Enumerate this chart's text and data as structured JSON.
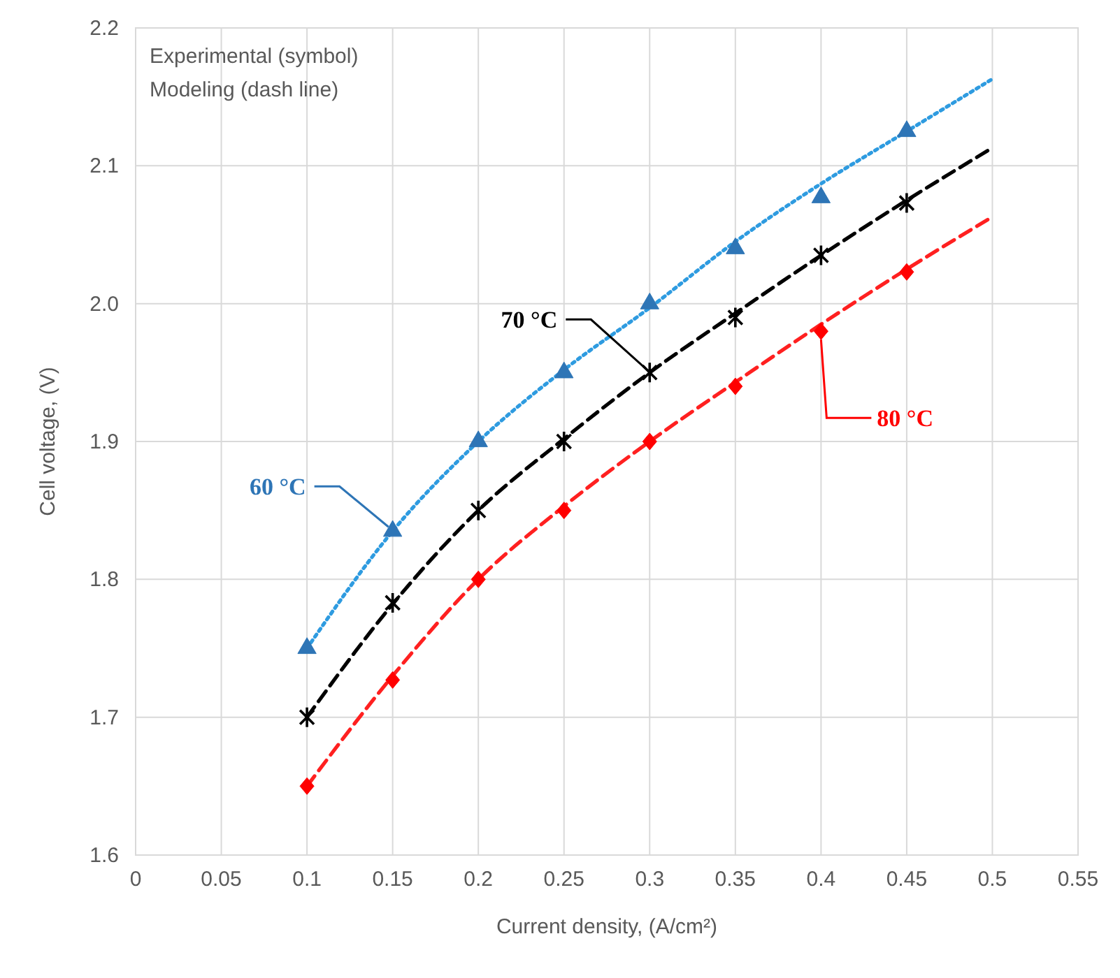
{
  "chart_data": {
    "type": "line",
    "xlabel": "Current density, (A/cm²)",
    "ylabel": "Cell voltage, (V)",
    "annotations": [
      "Experimental (symbol)",
      "Modeling (dash line)"
    ],
    "xlim": [
      0,
      0.55
    ],
    "xticks": [
      0,
      0.05,
      0.1,
      0.15,
      0.2,
      0.25,
      0.3,
      0.35,
      0.4,
      0.45,
      0.5,
      0.55
    ],
    "ylim": [
      1.6,
      2.2
    ],
    "yticks": [
      1.6,
      1.7,
      1.8,
      1.9,
      {
        "value": 2,
        "label": "2.0"
      },
      2.1,
      2.2
    ],
    "grid": true,
    "series": [
      {
        "type": "scatter",
        "name": "60 °C",
        "color": "#2e75b6",
        "marker": "triangle",
        "x": [
          0.1,
          0.15,
          0.2,
          0.25,
          0.3,
          0.35,
          0.4,
          0.45
        ],
        "values": [
          1.75,
          1.835,
          1.9,
          1.95,
          2.0,
          2.04,
          2.077,
          2.125
        ]
      },
      {
        "type": "scatter",
        "name": "70 °C",
        "color": "#000000",
        "marker": "cross",
        "x": [
          0.1,
          0.15,
          0.2,
          0.25,
          0.3,
          0.35,
          0.4,
          0.45
        ],
        "values": [
          1.7,
          1.783,
          1.85,
          1.9,
          1.95,
          1.99,
          2.035,
          2.073
        ]
      },
      {
        "type": "scatter",
        "name": "80 °C",
        "color": "#ff0000",
        "marker": "diamond",
        "x": [
          0.1,
          0.15,
          0.2,
          0.25,
          0.3,
          0.35,
          0.4,
          0.45
        ],
        "values": [
          1.65,
          1.727,
          1.8,
          1.85,
          1.9,
          1.94,
          1.98,
          2.023
        ]
      },
      {
        "color": "#2e9be0",
        "line_style": "dotted",
        "marker": "none",
        "x": [
          0.1,
          0.15,
          0.2,
          0.25,
          0.3,
          0.35,
          0.4,
          0.45,
          0.5
        ],
        "values": [
          1.75,
          1.835,
          1.9,
          1.952,
          1.997,
          2.045,
          2.087,
          2.125,
          2.163
        ]
      },
      {
        "color": "#000000",
        "line_style": "dashed",
        "marker": "none",
        "x": [
          0.1,
          0.15,
          0.2,
          0.25,
          0.3,
          0.35,
          0.4,
          0.45,
          0.5
        ],
        "values": [
          1.7,
          1.782,
          1.85,
          1.902,
          1.95,
          1.993,
          2.035,
          2.075,
          2.113
        ]
      },
      {
        "color": "#ff2020",
        "line_style": "dashed",
        "marker": "none",
        "x": [
          0.1,
          0.15,
          0.2,
          0.25,
          0.3,
          0.35,
          0.4,
          0.45,
          0.5
        ],
        "values": [
          1.65,
          1.73,
          1.8,
          1.853,
          1.9,
          1.943,
          1.985,
          2.025,
          2.063
        ]
      }
    ]
  }
}
